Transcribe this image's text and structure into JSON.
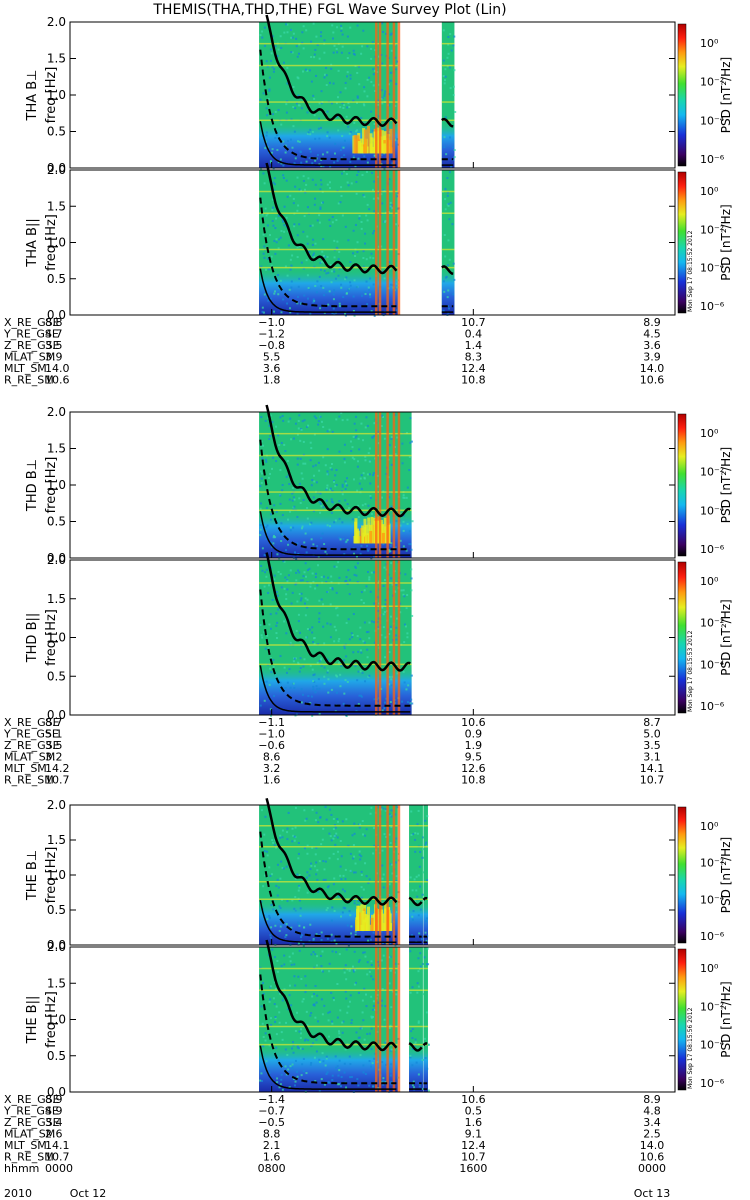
{
  "title": "THEMIS(THA,THD,THE) FGL Wave Survey Plot (Lin)",
  "colors": {
    "background": "#ffffff",
    "spectrogram_base": "#22c27a",
    "colorbar": [
      "#000000",
      "#3a0060",
      "#1830d8",
      "#14b8f0",
      "#18d6b0",
      "#40e030",
      "#e6ee20",
      "#ff9a10",
      "#ff2010",
      "#b00000"
    ]
  },
  "chart_data": [
    {
      "type": "heatmap",
      "panel": "THA Bperp",
      "ylabel_probe": "THA B⊥",
      "ylabel_freq": "freq [Hz]",
      "yticks": [
        "2.0",
        "1.5",
        "1.0",
        "0.5",
        "0.0"
      ],
      "ylim": [
        0,
        2.0
      ],
      "colorbar_label": "PSD [nT²/Hz]",
      "colorbar_ticks": [
        "10⁰",
        "10⁻²",
        "10⁻⁴",
        "10⁻⁶"
      ],
      "stamp": ""
    },
    {
      "type": "heatmap",
      "panel": "THA Bpar",
      "ylabel_probe": "THA B||",
      "ylabel_freq": "freq [Hz]",
      "yticks": [
        "2.0",
        "1.5",
        "1.0",
        "0.5",
        "0.0"
      ],
      "ylim": [
        0,
        2.0
      ],
      "colorbar_label": "PSD [nT²/Hz]",
      "colorbar_ticks": [
        "10⁰",
        "10⁻²",
        "10⁻⁴",
        "10⁻⁶"
      ],
      "stamp": "Mon Sep 17 08:15:52 2012"
    },
    {
      "type": "heatmap",
      "panel": "THD Bperp",
      "ylabel_probe": "THD B⊥",
      "ylabel_freq": "freq [Hz]",
      "yticks": [
        "2.0",
        "1.5",
        "1.0",
        "0.5",
        "0.0"
      ],
      "ylim": [
        0,
        2.0
      ],
      "colorbar_label": "PSD [nT²/Hz]",
      "colorbar_ticks": [
        "10⁰",
        "10⁻²",
        "10⁻⁴",
        "10⁻⁶"
      ],
      "stamp": ""
    },
    {
      "type": "heatmap",
      "panel": "THD Bpar",
      "ylabel_probe": "THD B||",
      "ylabel_freq": "freq [Hz]",
      "yticks": [
        "2.0",
        "1.5",
        "1.0",
        "0.5",
        "0.0"
      ],
      "ylim": [
        0,
        2.0
      ],
      "colorbar_label": "PSD [nT²/Hz]",
      "colorbar_ticks": [
        "10⁰",
        "10⁻²",
        "10⁻⁴",
        "10⁻⁶"
      ],
      "stamp": "Mon Sep 17 08:15:53 2012"
    },
    {
      "type": "heatmap",
      "panel": "THE Bperp",
      "ylabel_probe": "THE B⊥",
      "ylabel_freq": "freq [Hz]",
      "yticks": [
        "2.0",
        "1.5",
        "1.0",
        "0.5",
        "0.0"
      ],
      "ylim": [
        0,
        2.0
      ],
      "colorbar_label": "PSD [nT²/Hz]",
      "colorbar_ticks": [
        "10⁰",
        "10⁻²",
        "10⁻⁴",
        "10⁻⁶"
      ],
      "stamp": ""
    },
    {
      "type": "heatmap",
      "panel": "THE Bpar",
      "ylabel_probe": "THE B||",
      "ylabel_freq": "freq [Hz]",
      "yticks": [
        "2.0",
        "1.5",
        "1.0",
        "0.5",
        "0.0"
      ],
      "ylim": [
        0,
        2.0
      ],
      "colorbar_label": "PSD [nT²/Hz]",
      "colorbar_ticks": [
        "10⁰",
        "10⁻²",
        "10⁻⁴",
        "10⁻⁶"
      ],
      "stamp": "Mon Sep 17 08:15:56 2012"
    }
  ],
  "orbit_tables": [
    {
      "rows": [
        {
          "label": "X_RE_GSE",
          "values": [
            "8.8",
            "−1.0",
            "10.7",
            "8.9"
          ]
        },
        {
          "label": "Y_RE_GSE",
          "values": [
            "4.7",
            "−1.2",
            "0.4",
            "4.5"
          ]
        },
        {
          "label": "Z_RE_GSE",
          "values": [
            "3.5",
            "−0.8",
            "1.4",
            "3.6"
          ]
        },
        {
          "label": "MLAT_SM",
          "values": [
            "3.9",
            "5.5",
            "8.3",
            "3.9"
          ]
        },
        {
          "label": "MLT_SM",
          "values": [
            "14.0",
            "3.6",
            "12.4",
            "14.0"
          ]
        },
        {
          "label": "R_RE_SM",
          "values": [
            "10.6",
            "1.8",
            "10.8",
            "10.6"
          ]
        }
      ]
    },
    {
      "rows": [
        {
          "label": "X_RE_GSE",
          "values": [
            "8.7",
            "−1.1",
            "10.6",
            "8.7"
          ]
        },
        {
          "label": "Y_RE_GSE",
          "values": [
            "5.1",
            "−1.0",
            "0.9",
            "5.0"
          ]
        },
        {
          "label": "Z_RE_GSE",
          "values": [
            "3.5",
            "−0.6",
            "1.9",
            "3.5"
          ]
        },
        {
          "label": "MLAT_SM",
          "values": [
            "3.2",
            "8.6",
            "9.5",
            "3.1"
          ]
        },
        {
          "label": "MLT_SM",
          "values": [
            "14.2",
            "3.2",
            "12.6",
            "14.1"
          ]
        },
        {
          "label": "R_RE_SM",
          "values": [
            "10.7",
            "1.6",
            "10.8",
            "10.7"
          ]
        }
      ]
    },
    {
      "rows": [
        {
          "label": "X_RE_GSE",
          "values": [
            "8.9",
            "−1.4",
            "10.6",
            "8.9"
          ]
        },
        {
          "label": "Y_RE_GSE",
          "values": [
            "4.9",
            "−0.7",
            "0.5",
            "4.8"
          ]
        },
        {
          "label": "Z_RE_GSE",
          "values": [
            "3.4",
            "−0.5",
            "1.6",
            "3.4"
          ]
        },
        {
          "label": "MLAT_SM",
          "values": [
            "2.6",
            "8.8",
            "9.1",
            "2.5"
          ]
        },
        {
          "label": "MLT_SM",
          "values": [
            "14.1",
            "2.1",
            "12.4",
            "14.0"
          ]
        },
        {
          "label": "R_RE_SM",
          "values": [
            "10.7",
            "1.6",
            "10.7",
            "10.6"
          ]
        },
        {
          "label": "hhmm",
          "values": [
            "0000",
            "0800",
            "1600",
            "0000"
          ]
        }
      ]
    }
  ],
  "time_axis": {
    "year": "2010",
    "start_label": "Oct 12",
    "end_label": "Oct 13",
    "hours": [
      0,
      8,
      16,
      24
    ]
  },
  "spectrogram_segments": [
    {
      "probe": "THA",
      "coverage_hours": [
        [
          7.5,
          13.0
        ],
        [
          14.75,
          15.25
        ]
      ]
    },
    {
      "probe": "THD",
      "coverage_hours": [
        [
          7.5,
          13.55
        ]
      ]
    },
    {
      "probe": "THE",
      "coverage_hours": [
        [
          7.5,
          13.0
        ],
        [
          13.45,
          14.0
        ],
        [
          14.02,
          14.2
        ]
      ]
    }
  ]
}
